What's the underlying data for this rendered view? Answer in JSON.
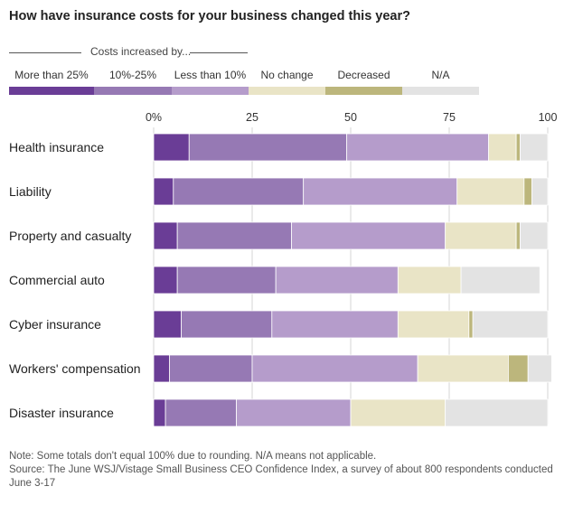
{
  "title": "How have insurance costs for your business changed this year?",
  "legend": {
    "group_label": "Costs increased by...",
    "items": [
      {
        "label": "More than 25%",
        "color": "#6a3d96"
      },
      {
        "label": "10%-25%",
        "color": "#9679b4"
      },
      {
        "label": "Less than 10%",
        "color": "#b59ccb"
      },
      {
        "label": "No change",
        "color": "#e9e4c6"
      },
      {
        "label": "Decreased",
        "color": "#bcb67c"
      },
      {
        "label": "N/A",
        "color": "#e3e3e3"
      }
    ]
  },
  "chart_data": {
    "type": "bar",
    "orientation": "horizontal",
    "stacked": true,
    "xlim": [
      0,
      100
    ],
    "ticks": [
      "0%",
      "25",
      "50",
      "75",
      "100"
    ],
    "tick_values": [
      0,
      25,
      50,
      75,
      100
    ],
    "grid": true,
    "legend_position": "top",
    "categories": [
      "Health insurance",
      "Liability",
      "Property and casualty",
      "Commercial auto",
      "Cyber insurance",
      "Workers' compensation",
      "Disaster insurance"
    ],
    "series": [
      {
        "name": "More than 25%",
        "values": [
          9,
          5,
          6,
          6,
          7,
          4,
          3
        ]
      },
      {
        "name": "10%-25%",
        "values": [
          40,
          33,
          29,
          25,
          23,
          21,
          18
        ]
      },
      {
        "name": "Less than 10%",
        "values": [
          36,
          39,
          39,
          31,
          32,
          42,
          29
        ]
      },
      {
        "name": "No change",
        "values": [
          7,
          17,
          18,
          16,
          18,
          23,
          24
        ]
      },
      {
        "name": "Decreased",
        "values": [
          1,
          2,
          1,
          0,
          1,
          5,
          0
        ]
      },
      {
        "name": "N/A",
        "values": [
          7,
          4,
          7,
          20,
          19,
          6,
          26
        ]
      }
    ]
  },
  "footer": {
    "note": "Note: Some totals don't equal 100% due to rounding. N/A means not applicable.",
    "source": "Source: The June WSJ/Vistage Small Business CEO Confidence Index, a survey of about 800 respondents conducted June 3-17"
  }
}
